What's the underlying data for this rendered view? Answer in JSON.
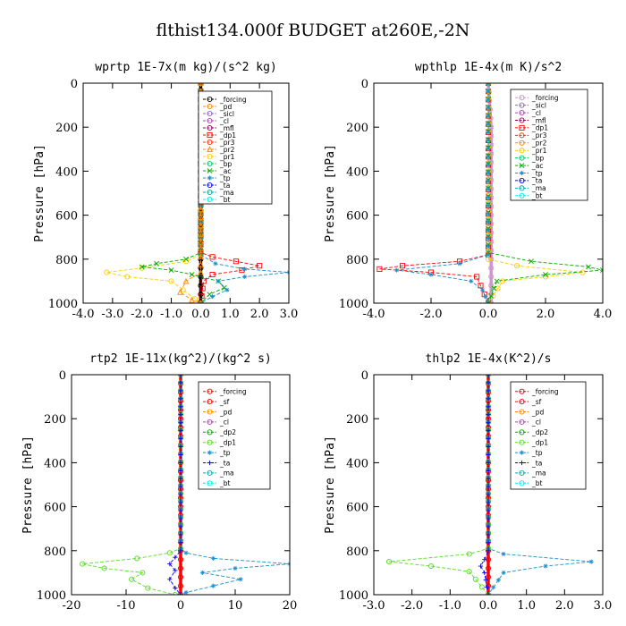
{
  "figure": {
    "title": "flthist134.000f  BUDGET at260E,-2N"
  },
  "chart_data": [
    {
      "type": "line",
      "title": "wprtp  1E-7x(m kg)/(s^2 kg)",
      "ylabel": "Pressure [hPa]",
      "xlim": [
        -4.0,
        3.0
      ],
      "ylim": [
        1000,
        0
      ],
      "xticks": [
        "-4.0",
        "-3.0",
        "-2.0",
        "-1.0",
        "0.0",
        "1.0",
        "2.0",
        "3.0"
      ],
      "xtick_values": [
        -4,
        -3,
        -2,
        -1,
        0,
        1,
        2,
        3
      ],
      "yticks": [
        "0",
        "200",
        "400",
        "600",
        "800",
        "1000"
      ],
      "ytick_values": [
        0,
        200,
        400,
        600,
        800,
        1000
      ],
      "legend": [
        "_forcing",
        "_pd",
        "_sicl",
        "_cl",
        "_mfl",
        "_dp1",
        "_pr3",
        "_pr2",
        "_pr1",
        "_bp",
        "_ac",
        "_tp",
        "_ta",
        "_ma",
        "_bt"
      ],
      "series": [
        {
          "name": "_forcing",
          "color": "#000000",
          "marker": "o",
          "points": [
            [
              0,
              0
            ],
            [
              0,
              200
            ],
            [
              0,
              400
            ],
            [
              0,
              600
            ],
            [
              0,
              800
            ],
            [
              0,
              1000
            ]
          ]
        },
        {
          "name": "_pr1",
          "color": "#ffcc00",
          "marker": "o",
          "points": [
            [
              0,
              0
            ],
            [
              0,
              780
            ],
            [
              -0.5,
              810
            ],
            [
              -2.0,
              840
            ],
            [
              -3.2,
              860
            ],
            [
              -2.5,
              880
            ],
            [
              -1.0,
              900
            ],
            [
              -0.6,
              940
            ],
            [
              -0.2,
              980
            ],
            [
              0,
              1000
            ]
          ]
        },
        {
          "name": "_dp1",
          "color": "#ff0000",
          "marker": "s",
          "points": [
            [
              0,
              0
            ],
            [
              0,
              770
            ],
            [
              0.4,
              790
            ],
            [
              1.2,
              810
            ],
            [
              2.0,
              830
            ],
            [
              1.4,
              850
            ],
            [
              0.4,
              870
            ],
            [
              0.1,
              900
            ],
            [
              0,
              1000
            ]
          ]
        },
        {
          "name": "_ac",
          "color": "#00aa00",
          "marker": "x",
          "points": [
            [
              0,
              0
            ],
            [
              0,
              770
            ],
            [
              -0.5,
              800
            ],
            [
              -1.5,
              820
            ],
            [
              -2.0,
              835
            ],
            [
              -1.0,
              850
            ],
            [
              -0.3,
              870
            ],
            [
              0.6,
              900
            ],
            [
              0.8,
              930
            ],
            [
              0.3,
              960
            ],
            [
              0,
              1000
            ]
          ]
        },
        {
          "name": "_tp",
          "color": "#1a8fc9",
          "marker": "*",
          "points": [
            [
              0,
              0
            ],
            [
              0,
              780
            ],
            [
              0.5,
              820
            ],
            [
              1.5,
              845
            ],
            [
              3.0,
              860
            ],
            [
              1.5,
              880
            ],
            [
              0.6,
              900
            ],
            [
              0.9,
              940
            ],
            [
              0.4,
              970
            ],
            [
              0,
              1000
            ]
          ]
        },
        {
          "name": "_pr2",
          "color": "#ff8800",
          "marker": "^",
          "points": [
            [
              0,
              0
            ],
            [
              0,
              860
            ],
            [
              -0.5,
              900
            ],
            [
              -0.7,
              950
            ],
            [
              -0.3,
              985
            ],
            [
              0,
              1000
            ]
          ]
        }
      ]
    },
    {
      "type": "line",
      "title": "wpthlp  1E-4x(m K)/s^2",
      "ylabel": "Pressure [hPa]",
      "xlim": [
        -4.0,
        4.0
      ],
      "ylim": [
        1000,
        0
      ],
      "xticks": [
        "-4.0",
        "-2.0",
        "0.0",
        "2.0",
        "4.0"
      ],
      "xtick_values": [
        -4,
        -2,
        0,
        2,
        4
      ],
      "yticks": [
        "0",
        "200",
        "400",
        "600",
        "800",
        "1000"
      ],
      "ytick_values": [
        0,
        200,
        400,
        600,
        800,
        1000
      ],
      "legend": [
        "_forcing",
        "_sicl",
        "_cl",
        "_mfl",
        "_dp1",
        "_pr3",
        "_pr2",
        "_pr1",
        "_bp",
        "_ac",
        "_tp",
        "_ta",
        "_ma",
        "_bt"
      ],
      "series": [
        {
          "name": "_forcing",
          "color": "#cc99cc",
          "marker": "o",
          "points": [
            [
              0,
              0
            ],
            [
              0.1,
              200
            ],
            [
              0.1,
              400
            ],
            [
              0.1,
              600
            ],
            [
              0.1,
              800
            ],
            [
              0.1,
              1000
            ]
          ]
        },
        {
          "name": "_dp1",
          "color": "#ff0000",
          "marker": "s",
          "points": [
            [
              0,
              0
            ],
            [
              0,
              780
            ],
            [
              -1.0,
              810
            ],
            [
              -3.0,
              830
            ],
            [
              -3.8,
              845
            ],
            [
              -2.0,
              860
            ],
            [
              -0.4,
              880
            ],
            [
              0,
              1000
            ]
          ]
        },
        {
          "name": "_pr1",
          "color": "#ffcc00",
          "marker": "o",
          "points": [
            [
              0,
              0
            ],
            [
              0,
              800
            ],
            [
              1.0,
              830
            ],
            [
              3.3,
              860
            ],
            [
              2.0,
              880
            ],
            [
              0.5,
              900
            ],
            [
              0,
              1000
            ]
          ]
        },
        {
          "name": "_ac",
          "color": "#00aa00",
          "marker": "x",
          "points": [
            [
              0,
              0
            ],
            [
              0,
              770
            ],
            [
              1.5,
              810
            ],
            [
              3.5,
              835
            ],
            [
              4.0,
              850
            ],
            [
              2.0,
              870
            ],
            [
              0.3,
              900
            ],
            [
              0,
              1000
            ]
          ]
        },
        {
          "name": "_tp",
          "color": "#1a8fc9",
          "marker": "*",
          "points": [
            [
              0,
              0
            ],
            [
              0,
              780
            ],
            [
              -1.0,
              820
            ],
            [
              -3.2,
              850
            ],
            [
              -2.0,
              870
            ],
            [
              -0.6,
              900
            ],
            [
              -0.2,
              940
            ],
            [
              0,
              1000
            ]
          ]
        }
      ]
    },
    {
      "type": "line",
      "title": "rtp2  1E-11x(kg^2)/(kg^2 s)",
      "ylabel": "Pressure [hPa]",
      "xlim": [
        -20,
        20
      ],
      "ylim": [
        1000,
        0
      ],
      "xticks": [
        "-20",
        "-10",
        "0",
        "10",
        "20"
      ],
      "xtick_values": [
        -20,
        -10,
        0,
        10,
        20
      ],
      "yticks": [
        "0",
        "200",
        "400",
        "600",
        "800",
        "1000"
      ],
      "ytick_values": [
        0,
        200,
        400,
        600,
        800,
        1000
      ],
      "legend": [
        "_forcing",
        "_sf",
        "_pd",
        "_cl",
        "_dp2",
        "_dp1",
        "_tp",
        "_ta",
        "_ma",
        "_bt"
      ],
      "series": [
        {
          "name": "_forcing",
          "color": "#ff0000",
          "marker": "o",
          "points": [
            [
              0,
              0
            ],
            [
              0,
              200
            ],
            [
              0,
              400
            ],
            [
              0,
              600
            ],
            [
              0,
              800
            ],
            [
              0,
              1000
            ]
          ]
        },
        {
          "name": "_dp1",
          "color": "#55dd22",
          "marker": "o",
          "points": [
            [
              0,
              0
            ],
            [
              0,
              790
            ],
            [
              -2,
              810
            ],
            [
              -8,
              835
            ],
            [
              -18,
              860
            ],
            [
              -14,
              880
            ],
            [
              -7,
              900
            ],
            [
              -9,
              930
            ],
            [
              -6,
              970
            ],
            [
              -1,
              1000
            ]
          ]
        },
        {
          "name": "_tp",
          "color": "#1a8fc9",
          "marker": "*",
          "points": [
            [
              0,
              0
            ],
            [
              0,
              790
            ],
            [
              1,
              810
            ],
            [
              6,
              835
            ],
            [
              20,
              860
            ],
            [
              10,
              880
            ],
            [
              4,
              900
            ],
            [
              11,
              930
            ],
            [
              6,
              960
            ],
            [
              1,
              990
            ],
            [
              0,
              1000
            ]
          ]
        },
        {
          "name": "_ta",
          "color": "#0000ff",
          "marker": "+",
          "points": [
            [
              0,
              0
            ],
            [
              0,
              800
            ],
            [
              -1,
              830
            ],
            [
              -2,
              860
            ],
            [
              -1,
              890
            ],
            [
              -2,
              930
            ],
            [
              -1,
              970
            ],
            [
              0,
              1000
            ]
          ]
        }
      ]
    },
    {
      "type": "line",
      "title": "thlp2  1E-4x(K^2)/s",
      "ylabel": "Pressure [hPa]",
      "xlim": [
        -3.0,
        3.0
      ],
      "ylim": [
        1000,
        0
      ],
      "xticks": [
        "-3.0",
        "-2.0",
        "-1.0",
        "0.0",
        "1.0",
        "2.0",
        "3.0"
      ],
      "xtick_values": [
        -3,
        -2,
        -1,
        0,
        1,
        2,
        3
      ],
      "yticks": [
        "0",
        "200",
        "400",
        "600",
        "800",
        "1000"
      ],
      "ytick_values": [
        0,
        200,
        400,
        600,
        800,
        1000
      ],
      "legend": [
        "_forcing",
        "_sf",
        "_pd",
        "_cl",
        "_dp2",
        "_dp1",
        "_tp",
        "_ta",
        "_ma",
        "_bt"
      ],
      "series": [
        {
          "name": "_forcing",
          "color": "#ff0000",
          "marker": "o",
          "points": [
            [
              0,
              0
            ],
            [
              0,
              200
            ],
            [
              0,
              400
            ],
            [
              0,
              600
            ],
            [
              0,
              800
            ],
            [
              0,
              1000
            ]
          ]
        },
        {
          "name": "_dp1",
          "color": "#55dd22",
          "marker": "o",
          "points": [
            [
              0,
              0
            ],
            [
              0,
              790
            ],
            [
              -0.5,
              815
            ],
            [
              -2.6,
              850
            ],
            [
              -1.5,
              870
            ],
            [
              -0.5,
              895
            ],
            [
              0,
              1000
            ]
          ]
        },
        {
          "name": "_tp",
          "color": "#1a8fc9",
          "marker": "*",
          "points": [
            [
              0,
              0
            ],
            [
              0,
              790
            ],
            [
              0.4,
              815
            ],
            [
              2.7,
              850
            ],
            [
              1.5,
              870
            ],
            [
              0.4,
              900
            ],
            [
              0,
              1000
            ]
          ]
        },
        {
          "name": "_ta",
          "color": "#0000ff",
          "marker": "+",
          "points": [
            [
              0,
              0
            ],
            [
              0,
              800
            ],
            [
              -0.1,
              840
            ],
            [
              -0.2,
              870
            ],
            [
              -0.1,
              900
            ],
            [
              0,
              1000
            ]
          ]
        }
      ]
    }
  ]
}
